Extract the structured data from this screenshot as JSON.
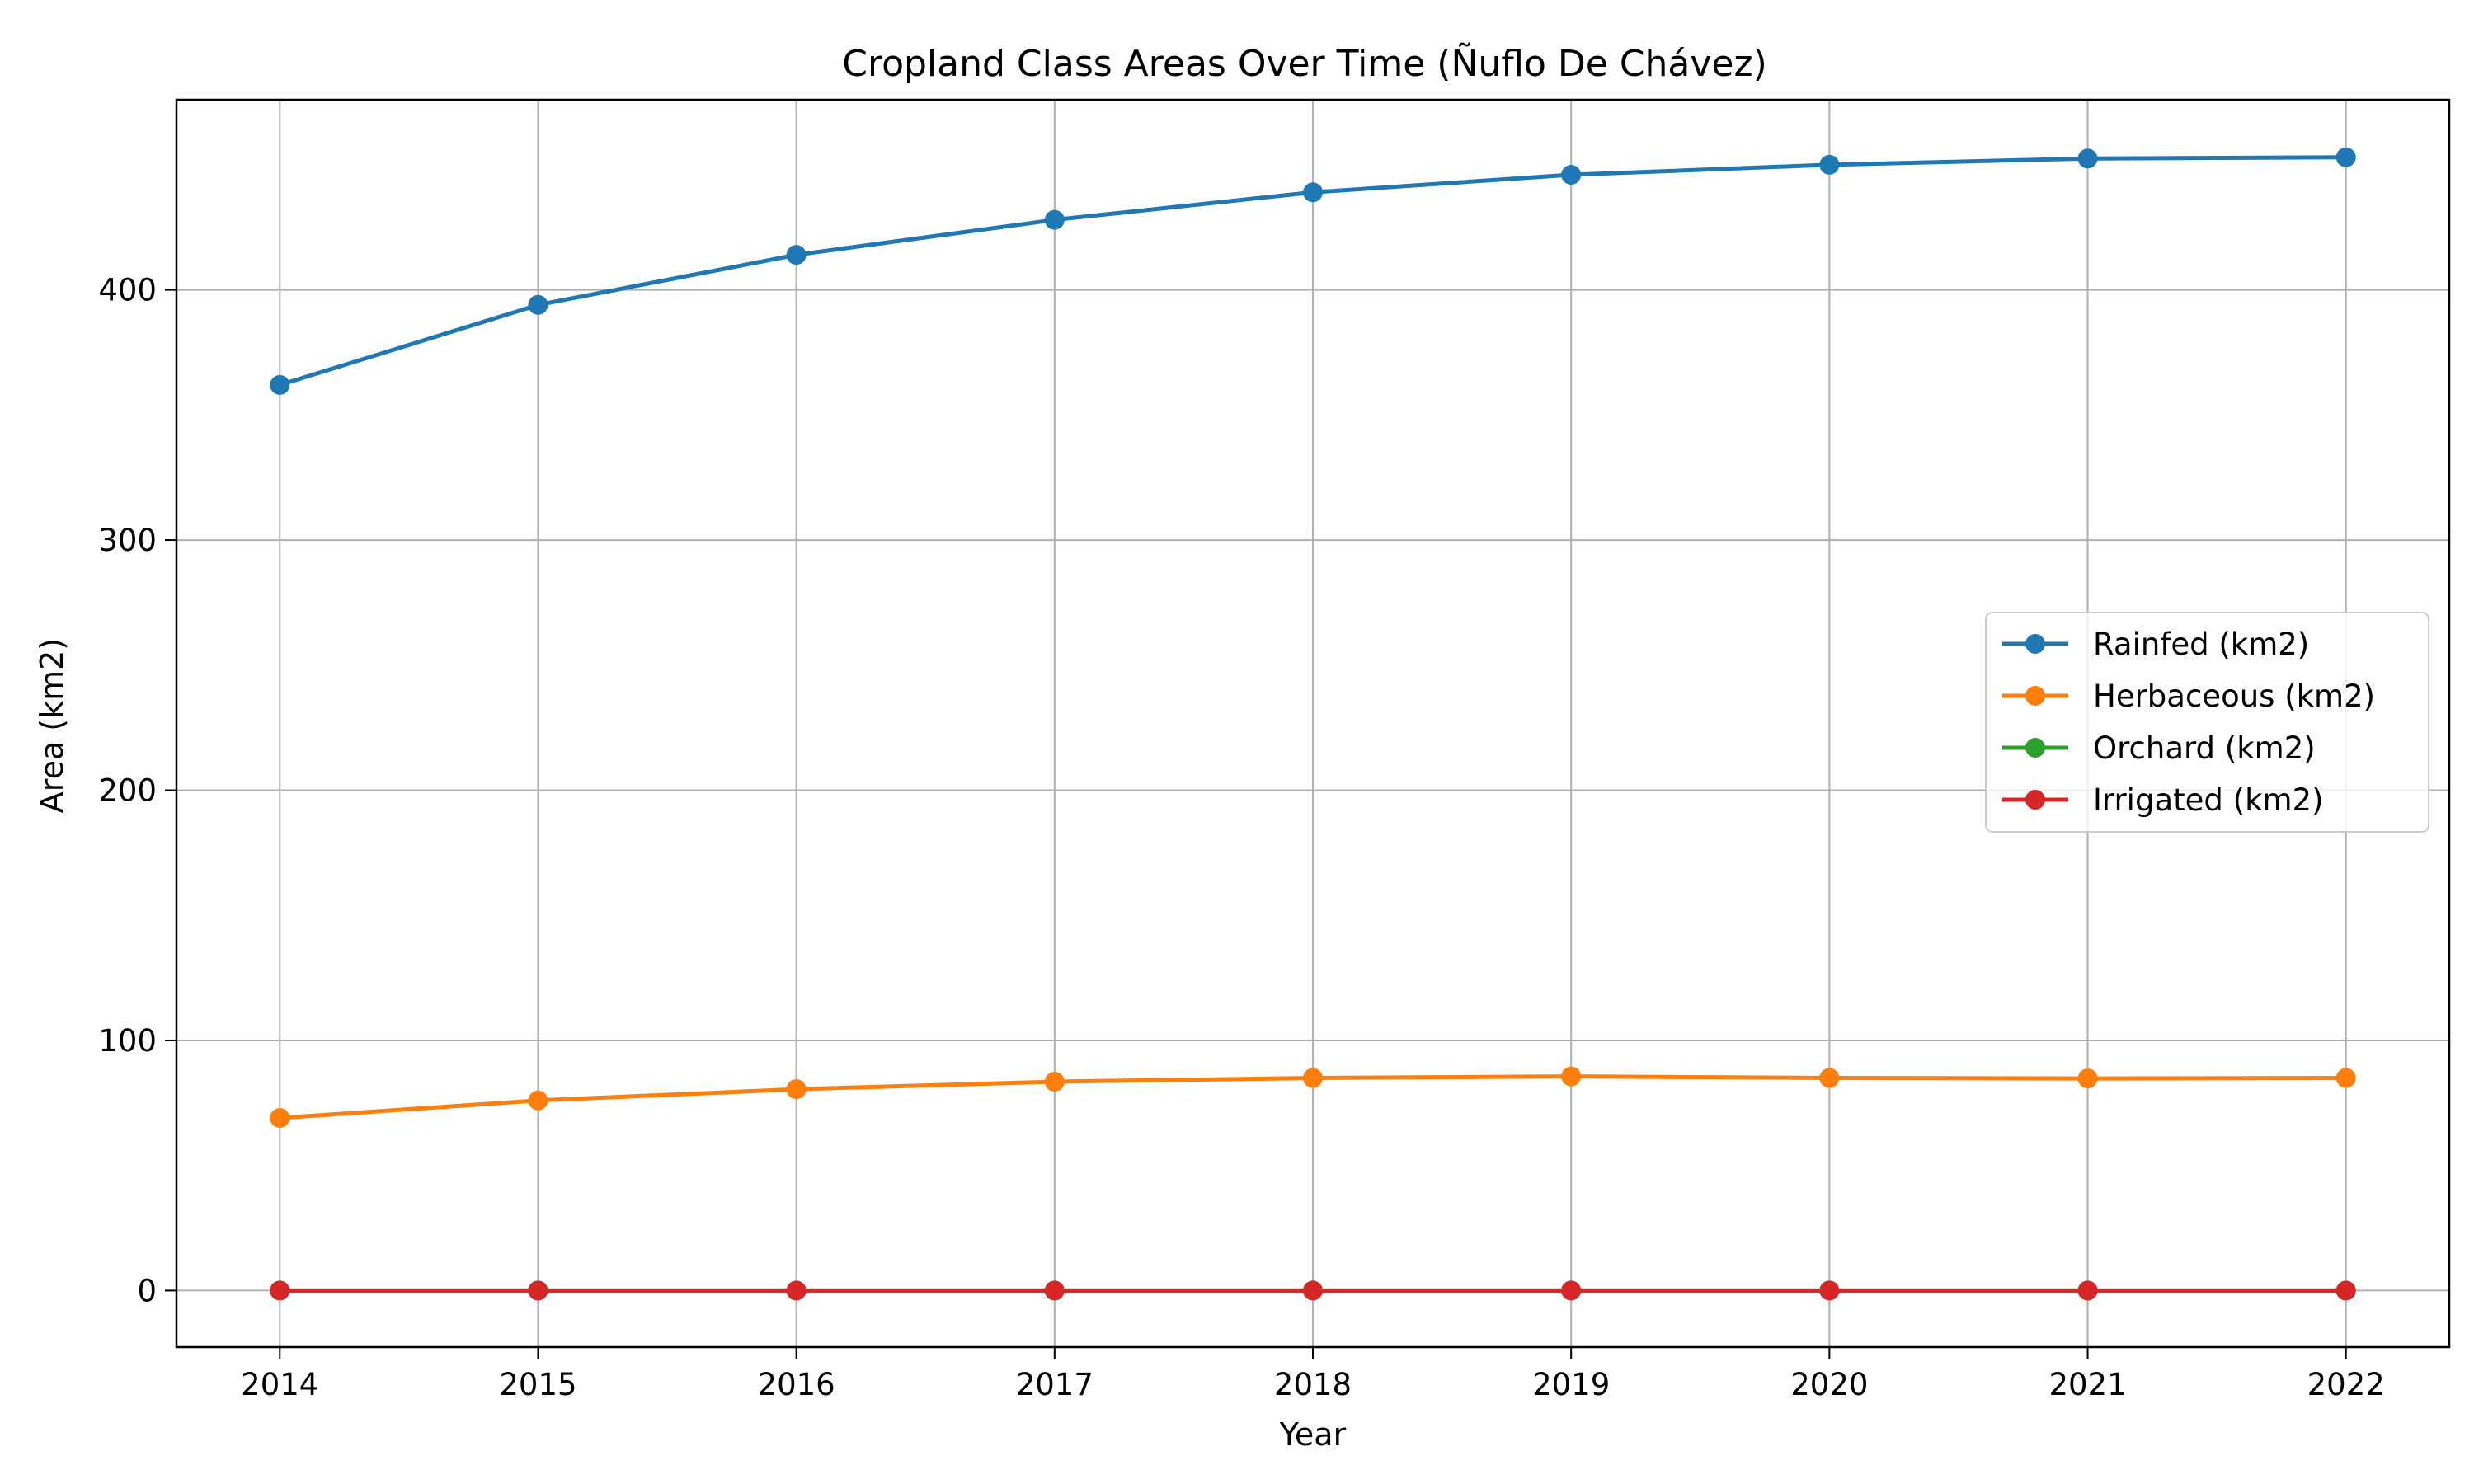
{
  "chart_data": {
    "type": "line",
    "title": "Cropland Class Areas Over Time (Ñuflo De Chávez)",
    "xlabel": "Year",
    "ylabel": "Area (km2)",
    "x": [
      2014,
      2015,
      2016,
      2017,
      2018,
      2019,
      2020,
      2021,
      2022
    ],
    "xlim": [
      2013.6,
      2022.4
    ],
    "ylim": [
      -22.6,
      476
    ],
    "xticks": [
      "2014",
      "2015",
      "2016",
      "2017",
      "2018",
      "2019",
      "2020",
      "2021",
      "2022"
    ],
    "yticks": [
      "0",
      "100",
      "200",
      "300",
      "400"
    ],
    "grid": true,
    "legend_position": "center-right",
    "series": [
      {
        "name": "Rainfed (km2)",
        "color": "#1f77b4",
        "values": [
          362,
          394,
          414,
          428,
          439,
          446,
          450,
          452.5,
          453
        ]
      },
      {
        "name": "Herbaceous (km2)",
        "color": "#ff7f0e",
        "values": [
          69,
          76,
          80.5,
          83.5,
          85,
          85.6,
          85,
          84.8,
          85
        ]
      },
      {
        "name": "Orchard (km2)",
        "color": "#2ca02c",
        "values": [
          0,
          0,
          0,
          0,
          0,
          0,
          0,
          0,
          0
        ]
      },
      {
        "name": "Irrigated (km2)",
        "color": "#d62728",
        "values": [
          0,
          0,
          0,
          0,
          0,
          0,
          0,
          0,
          0
        ]
      }
    ]
  }
}
